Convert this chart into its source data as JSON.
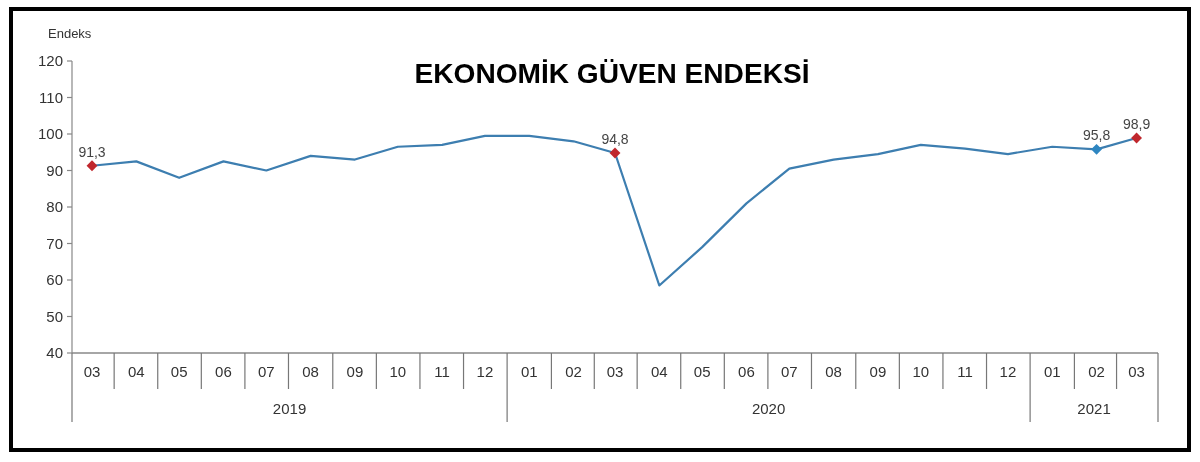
{
  "chart_data": {
    "type": "line",
    "title": "EKONOMİK GÜVEN ENDEKSİ",
    "ylabel": "Endeks",
    "x": [
      "2019-03",
      "2019-04",
      "2019-05",
      "2019-06",
      "2019-07",
      "2019-08",
      "2019-09",
      "2019-10",
      "2019-11",
      "2019-12",
      "2020-01",
      "2020-02",
      "2020-03",
      "2020-04",
      "2020-05",
      "2020-06",
      "2020-07",
      "2020-08",
      "2020-09",
      "2020-10",
      "2020-11",
      "2020-12",
      "2021-01",
      "2021-02",
      "2021-03"
    ],
    "xlim": [
      "2019-02-15",
      "2021-03-16"
    ],
    "xticks": [
      {
        "value": "2019-03",
        "label": "03"
      },
      {
        "value": "2019-04",
        "label": "04"
      },
      {
        "value": "2019-05",
        "label": "05"
      },
      {
        "value": "2019-06",
        "label": "06"
      },
      {
        "value": "2019-07",
        "label": "07"
      },
      {
        "value": "2019-08",
        "label": "08"
      },
      {
        "value": "2019-09",
        "label": "09"
      },
      {
        "value": "2019-10",
        "label": "10"
      },
      {
        "value": "2019-11",
        "label": "11"
      },
      {
        "value": "2019-12",
        "label": "12"
      },
      {
        "value": "2020-01",
        "label": "01"
      },
      {
        "value": "2020-02",
        "label": "02"
      },
      {
        "value": "2020-03",
        "label": "03"
      },
      {
        "value": "2020-04",
        "label": "04"
      },
      {
        "value": "2020-05",
        "label": "05"
      },
      {
        "value": "2020-06",
        "label": "06"
      },
      {
        "value": "2020-07",
        "label": "07"
      },
      {
        "value": "2020-08",
        "label": "08"
      },
      {
        "value": "2020-09",
        "label": "09"
      },
      {
        "value": "2020-10",
        "label": "10"
      },
      {
        "value": "2020-11",
        "label": "11"
      },
      {
        "value": "2020-12",
        "label": "12"
      },
      {
        "value": "2021-01",
        "label": "01"
      },
      {
        "value": "2021-02",
        "label": "02"
      },
      {
        "value": "2021-03",
        "label": "03"
      }
    ],
    "ylim": [
      40,
      120
    ],
    "yticks": [
      40,
      50,
      60,
      70,
      80,
      90,
      100,
      110,
      120
    ],
    "annotations": [
      "2019",
      "2020",
      "2021"
    ],
    "series": [
      {
        "type": "line",
        "color": "#3d7eb0",
        "values": [
          91.3,
          92.5,
          88,
          92.5,
          90,
          94,
          93,
          96.5,
          97,
          99.5,
          99.5,
          98,
          94.8,
          58.5,
          69,
          81,
          90.5,
          93,
          94.5,
          97,
          96,
          94.5,
          96.5,
          95.8,
          98.9
        ]
      },
      {
        "type": "scatter",
        "marker": "diamond",
        "color": "#c0272d",
        "values": [
          91.3,
          null,
          null,
          null,
          null,
          null,
          null,
          null,
          null,
          null,
          null,
          null,
          94.8,
          null,
          null,
          null,
          null,
          null,
          null,
          null,
          null,
          null,
          null,
          null,
          98.9
        ],
        "value_labels": [
          "91,3",
          null,
          null,
          null,
          null,
          null,
          null,
          null,
          null,
          null,
          null,
          null,
          "94,8",
          null,
          null,
          null,
          null,
          null,
          null,
          null,
          null,
          null,
          null,
          null,
          "98,9"
        ]
      },
      {
        "type": "scatter",
        "marker": "diamond",
        "color": "#2e86c1",
        "values": [
          null,
          null,
          null,
          null,
          null,
          null,
          null,
          null,
          null,
          null,
          null,
          null,
          null,
          null,
          null,
          null,
          null,
          null,
          null,
          null,
          null,
          null,
          null,
          95.8,
          null
        ],
        "value_labels": [
          null,
          null,
          null,
          null,
          null,
          null,
          null,
          null,
          null,
          null,
          null,
          null,
          null,
          null,
          null,
          null,
          null,
          null,
          null,
          null,
          null,
          null,
          null,
          "95,8",
          null
        ]
      }
    ]
  }
}
